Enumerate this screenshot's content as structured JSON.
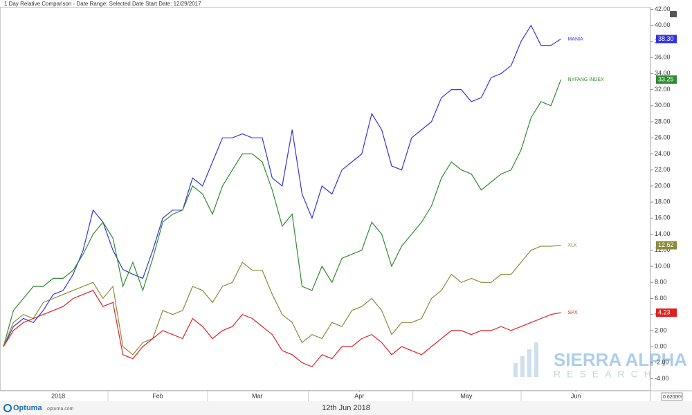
{
  "header": "1 Day Relative Comparison - Date Range: Selected Date  Start Date: 12/29/2017",
  "footer": {
    "brand": "Optuma",
    "site": "optuma.com",
    "date": "12th Jun 2018",
    "corner": "0.6200",
    "corner_mode": "XY"
  },
  "watermark": {
    "line1": "SIERRA ALPHA",
    "line2": "RESEARCH"
  },
  "chart_data": {
    "type": "line",
    "x": [
      0,
      2,
      4,
      6,
      8,
      10,
      12,
      14,
      16,
      18,
      20,
      22,
      24,
      26,
      28,
      30,
      32,
      34,
      36,
      38,
      40,
      42,
      44,
      46,
      48,
      50,
      52,
      54,
      56,
      58,
      60,
      62,
      64,
      66,
      68,
      70,
      72,
      74,
      76,
      78,
      80,
      82,
      84,
      86,
      88,
      90,
      92,
      94,
      96,
      98,
      100,
      102,
      104,
      106,
      108,
      110,
      112
    ],
    "xlim": [
      0,
      130
    ],
    "xticks": [
      {
        "value": 11,
        "label": "2018"
      },
      {
        "value": 31,
        "label": "Feb"
      },
      {
        "value": 51,
        "label": "Mar"
      },
      {
        "value": 71.5,
        "label": "Apr"
      },
      {
        "value": 93,
        "label": "May"
      },
      {
        "value": 115,
        "label": "Jun"
      }
    ],
    "ylim": [
      -5.5,
      42.3
    ],
    "yticks": [
      {
        "value": -4,
        "label": "-4.00"
      },
      {
        "value": -2,
        "label": "-2.00"
      },
      {
        "value": 0,
        "label": "0.00"
      },
      {
        "value": 2,
        "label": "2.00"
      },
      {
        "value": 4,
        "label": "4.00"
      },
      {
        "value": 6,
        "label": "6.00"
      },
      {
        "value": 8,
        "label": "8.00"
      },
      {
        "value": 10,
        "label": "10.00"
      },
      {
        "value": 12,
        "label": "12.00"
      },
      {
        "value": 14,
        "label": "14.00"
      },
      {
        "value": 16,
        "label": "16.00"
      },
      {
        "value": 18,
        "label": "18.00"
      },
      {
        "value": 20,
        "label": "20.00"
      },
      {
        "value": 22,
        "label": "22.00"
      },
      {
        "value": 24,
        "label": "24.00"
      },
      {
        "value": 26,
        "label": "26.00"
      },
      {
        "value": 28,
        "label": "28.00"
      },
      {
        "value": 30,
        "label": "30.00"
      },
      {
        "value": 32,
        "label": "32.00"
      },
      {
        "value": 34,
        "label": "34.00"
      },
      {
        "value": 36,
        "label": "36.00"
      },
      {
        "value": 38,
        "label": "38.00"
      },
      {
        "value": 40,
        "label": "40.00"
      },
      {
        "value": 42,
        "label": "42.00"
      }
    ],
    "grid": false,
    "series": [
      {
        "name": "MANIA",
        "color": "#3333dd",
        "values": [
          0,
          2.5,
          3.5,
          3,
          4.5,
          6.5,
          7,
          9,
          12,
          17,
          15.5,
          12,
          9.6,
          9,
          8.5,
          12,
          16,
          17,
          17,
          21,
          20,
          23,
          26,
          26,
          26.5,
          26,
          26,
          21,
          20,
          27,
          19,
          16,
          20,
          19,
          22,
          23,
          24,
          29,
          27,
          22.5,
          22,
          26,
          27,
          28,
          31,
          32,
          32,
          30.5,
          31,
          33.5,
          34,
          35,
          38,
          40,
          37.5,
          37.5,
          38.3
        ],
        "value_labels": [
          null,
          null,
          null,
          null,
          null,
          null,
          null,
          null,
          null,
          null,
          null,
          null,
          null,
          null,
          null,
          null,
          null,
          null,
          null,
          null,
          null,
          null,
          null,
          null,
          null,
          null,
          null,
          null,
          null,
          null,
          null,
          null,
          null,
          null,
          null,
          null,
          null,
          null,
          null,
          null,
          null,
          null,
          null,
          null,
          null,
          null,
          null,
          null,
          null,
          null,
          null,
          null,
          null,
          null,
          null,
          null,
          "38.30"
        ]
      },
      {
        "name": "NYFANG INDEX",
        "color": "#2e8b2e",
        "values": [
          0,
          4.5,
          6,
          7.5,
          7.5,
          8.5,
          8.5,
          9.5,
          11.5,
          14,
          15.5,
          13.5,
          7.5,
          10.5,
          7,
          11,
          15.5,
          16.5,
          17,
          20,
          19,
          16.5,
          20,
          22,
          24,
          24,
          23,
          19.5,
          15,
          16.5,
          7.5,
          7,
          10,
          8,
          11,
          11.5,
          12,
          15.5,
          14,
          10,
          12.5,
          14,
          15.5,
          17.5,
          21,
          23,
          22,
          21.5,
          19.5,
          20.5,
          21.5,
          22,
          24.5,
          28.5,
          30.5,
          30,
          33.25
        ]
      },
      {
        "name": "XLK",
        "color": "#8b8b3a",
        "values": [
          0,
          3,
          4,
          3.5,
          5.5,
          6,
          6.5,
          7,
          7.5,
          8,
          6,
          7.5,
          0,
          -1,
          0.5,
          1,
          4.5,
          4,
          4.5,
          7.5,
          7,
          5.5,
          7.5,
          8,
          10.5,
          9.5,
          9.5,
          6.5,
          4,
          3,
          0.5,
          1.5,
          1,
          3,
          2.5,
          4.5,
          5,
          6,
          4.5,
          1.5,
          3,
          3,
          3.5,
          6,
          7,
          9,
          8,
          8.5,
          8,
          8,
          9,
          9,
          10.5,
          12,
          12.5,
          12.5,
          12.62
        ]
      },
      {
        "name": "SPX",
        "color": "#e02020",
        "values": [
          0,
          2,
          3,
          3.5,
          4,
          4.5,
          5,
          6,
          6.5,
          7,
          5,
          5.5,
          -1,
          -1.5,
          0,
          1,
          2,
          1.5,
          1,
          3.5,
          2.5,
          1,
          2,
          2.5,
          4,
          3.5,
          2.5,
          1.5,
          -0.5,
          -1,
          -2,
          -2.5,
          -1,
          -1.5,
          0,
          0,
          1,
          1.5,
          0.5,
          -1,
          0,
          -0.5,
          -1,
          0,
          1,
          2,
          2,
          1.5,
          2,
          2,
          2.5,
          2,
          2.5,
          3,
          3.5,
          4,
          4.23
        ]
      }
    ]
  }
}
